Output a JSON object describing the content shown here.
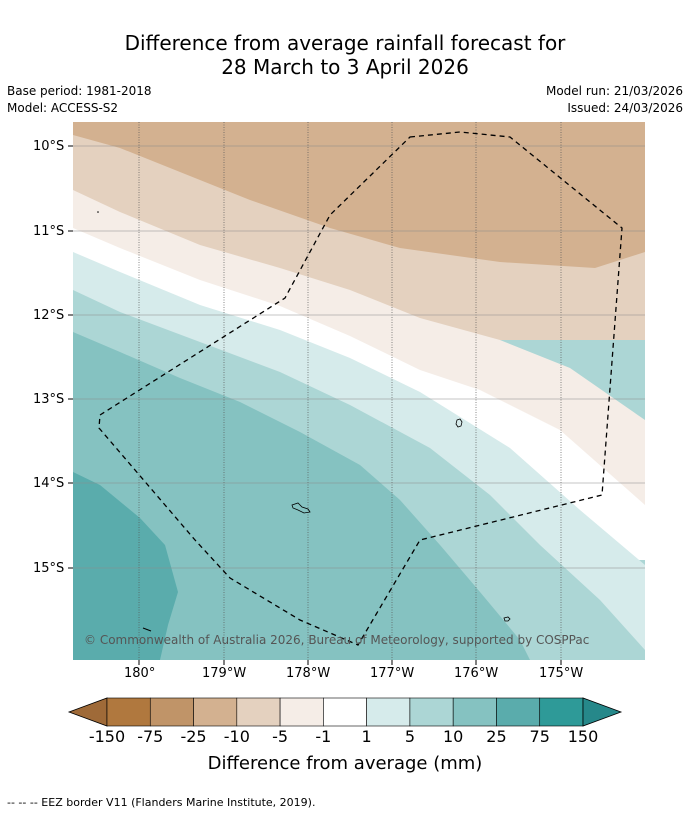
{
  "title_line1": "Difference from average rainfall forecast for",
  "title_line2": "28 March to 3 April 2026",
  "base_period": "Base period: 1981-2018",
  "model": "Model: ACCESS-S2",
  "model_run": "Model run: 21/03/2026",
  "issued": "Issued: 24/03/2026",
  "copyright": "© Commonwealth of Australia 2026, Bureau of Meteorology, supported by COSPPac",
  "lat_labels": [
    "10°S",
    "11°S",
    "12°S",
    "13°S",
    "14°S",
    "15°S"
  ],
  "lon_labels": [
    "180°",
    "179°W",
    "178°W",
    "177°W",
    "176°W",
    "175°W"
  ],
  "colorbar": {
    "labels": [
      "-150",
      "-75",
      "-25",
      "-10",
      "-5",
      "-1",
      "1",
      "5",
      "10",
      "25",
      "75",
      "150"
    ],
    "colors": [
      "#B0783E",
      "#C09468",
      "#D3B190",
      "#E4D1BF",
      "#F5EDE7",
      "#FFFFFF",
      "#D6EBEB",
      "#ACD6D5",
      "#85C2C1",
      "#5AACAC",
      "#2E9A98"
    ],
    "low_extend": "#9F6A38",
    "high_extend": "#26888A",
    "title": "Difference from average (mm)"
  },
  "legend_footer": "--  --  -- EEZ border V11 (Flanders Marine Institute, 2019).",
  "colors": {
    "gridline": "#555555",
    "eez": "#000000"
  }
}
